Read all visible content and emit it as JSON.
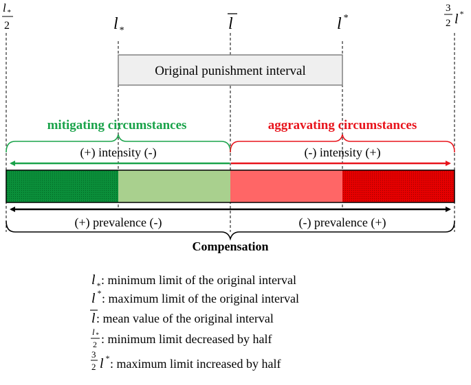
{
  "markers": {
    "half_min": {
      "symbol": "l",
      "subscript": "*",
      "denominator": "2"
    },
    "min": {
      "symbol": "l",
      "subscript": "*"
    },
    "mean": {
      "symbol": "l"
    },
    "max": {
      "symbol": "l",
      "superscript": "*"
    },
    "half_max": {
      "numerator": "3",
      "denominator": "2",
      "symbol": "l",
      "superscript": "*"
    }
  },
  "original_interval_label": "Original punishment interval",
  "mitigating": {
    "title": "mitigating circumstances",
    "intensity": "(+) intensity (-)",
    "color": "#1aa34a"
  },
  "aggravating": {
    "title": "aggravating circumstances",
    "intensity": "(-) intensity (+)",
    "color": "#e8141c"
  },
  "bar_colors": {
    "dark_green": "#0b8f3a",
    "light_green": "#a9d08e",
    "light_red": "#ff6666",
    "dark_red": "#e60000"
  },
  "prevalence_left": "(+) prevalence (-)",
  "prevalence_right": "(-) prevalence (+)",
  "compensation_label": "Compensation",
  "legend": [
    {
      "text": ": minimum limit of the original interval"
    },
    {
      "text": ": maximum limit of the original interval"
    },
    {
      "text": ": mean value of the original interval"
    },
    {
      "text": ": minimum limit decreased by half"
    },
    {
      "text": ": maximum limit increased by half"
    }
  ]
}
